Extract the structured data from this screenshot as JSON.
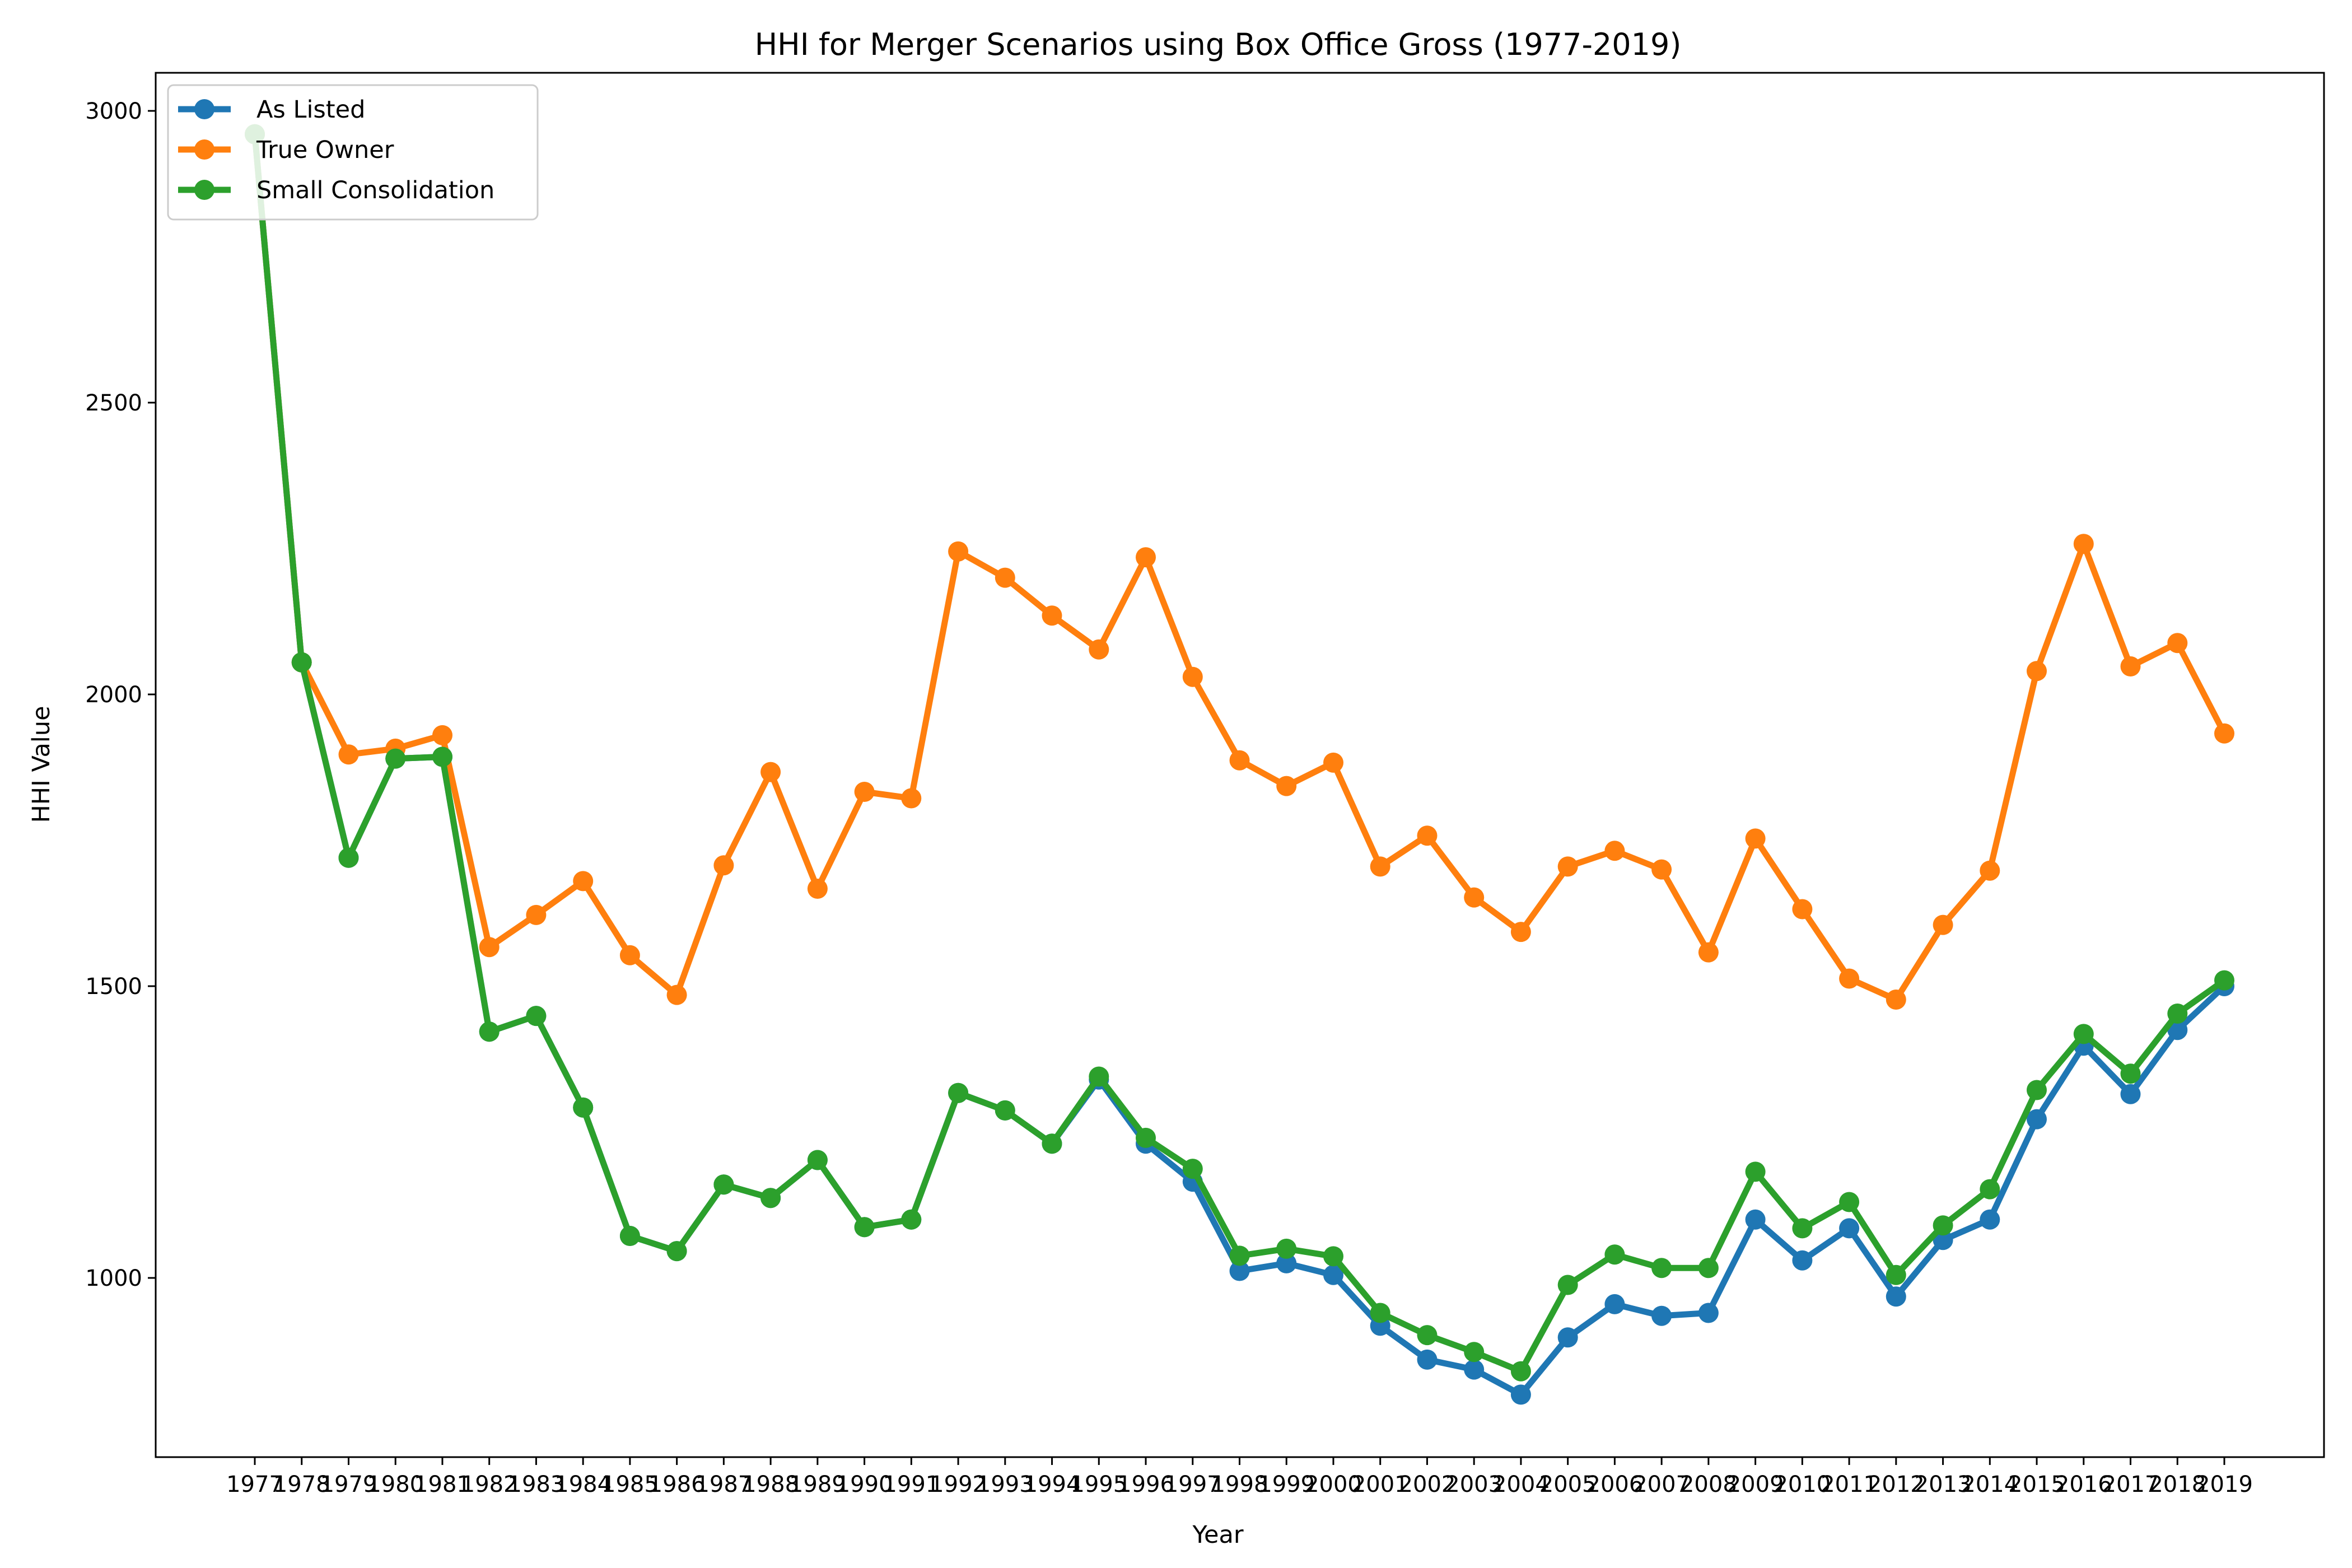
{
  "chart_data": {
    "type": "line",
    "title": "HHI for Merger Scenarios using Box Office Gross (1977-2019)",
    "xlabel": "Year",
    "ylabel": "HHI Value",
    "ylim": [
      700,
      3070
    ],
    "yticks": [
      1000,
      1500,
      2000,
      2500,
      3000
    ],
    "grid": false,
    "legend_position": "top-left",
    "categories": [
      "1977",
      "1978",
      "1979",
      "1980",
      "1981",
      "1982",
      "1983",
      "1984",
      "1985",
      "1986",
      "1987",
      "1988",
      "1989",
      "1990",
      "1991",
      "1992",
      "1993",
      "1994",
      "1995",
      "1996",
      "1997",
      "1998",
      "1999",
      "2000",
      "2001",
      "2002",
      "2003",
      "2004",
      "2005",
      "2006",
      "2007",
      "2008",
      "2009",
      "2010",
      "2011",
      "2012",
      "2013",
      "2014",
      "2015",
      "2016",
      "2017",
      "2018",
      "2019"
    ],
    "series": [
      {
        "name": "As Listed",
        "color": "#1f77b4",
        "values": [
          2960,
          2055,
          1720,
          1890,
          1893,
          1422,
          1449,
          1292,
          1072,
          1046,
          1160,
          1137,
          1202,
          1087,
          1100,
          1317,
          1287,
          1230,
          1340,
          1230,
          1165,
          1012,
          1025,
          1005,
          918,
          860,
          843,
          800,
          898,
          955,
          935,
          940,
          1100,
          1030,
          1085,
          968,
          1065,
          1100,
          1272,
          1398,
          1315,
          1425,
          1500
        ]
      },
      {
        "name": "True Owner",
        "color": "#ff7f0e",
        "values": [
          2960,
          2055,
          1897,
          1907,
          1930,
          1567,
          1622,
          1680,
          1553,
          1485,
          1707,
          1867,
          1667,
          1833,
          1822,
          2245,
          2200,
          2135,
          2077,
          2235,
          2030,
          1887,
          1843,
          1883,
          1705,
          1758,
          1652,
          1593,
          1705,
          1732,
          1700,
          1558,
          1753,
          1632,
          1513,
          1477,
          1605,
          1698,
          2040,
          2258,
          2048,
          2088,
          1933
        ]
      },
      {
        "name": "Small Consolidation",
        "color": "#2ca02c",
        "values": [
          2960,
          2055,
          1720,
          1890,
          1893,
          1422,
          1449,
          1292,
          1072,
          1046,
          1160,
          1137,
          1202,
          1087,
          1100,
          1317,
          1287,
          1230,
          1345,
          1240,
          1187,
          1038,
          1050,
          1037,
          940,
          902,
          873,
          840,
          988,
          1040,
          1017,
          1017,
          1182,
          1085,
          1130,
          1005,
          1090,
          1152,
          1322,
          1418,
          1350,
          1453,
          1510
        ]
      }
    ]
  }
}
